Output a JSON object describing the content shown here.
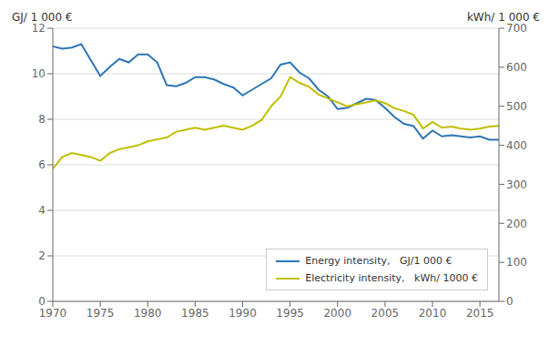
{
  "chart_data": {
    "type": "line",
    "ylabel": "GJ/ 1 000 €",
    "y2label": "kWh/ 1 000 €",
    "x": [
      1970,
      1971,
      1972,
      1973,
      1974,
      1975,
      1976,
      1977,
      1978,
      1979,
      1980,
      1981,
      1982,
      1983,
      1984,
      1985,
      1986,
      1987,
      1988,
      1989,
      1990,
      1991,
      1992,
      1993,
      1994,
      1995,
      1996,
      1997,
      1998,
      1999,
      2000,
      2001,
      2002,
      2003,
      2004,
      2005,
      2006,
      2007,
      2008,
      2009,
      2010,
      2011,
      2012,
      2013,
      2014,
      2015,
      2016,
      2017
    ],
    "series": [
      {
        "name": "Energy intensity,   GJ/1 000 €",
        "color": "#2E75B6",
        "values": [
          11.2,
          11.1,
          11.15,
          11.3,
          10.6,
          9.9,
          10.3,
          10.65,
          10.5,
          10.85,
          10.85,
          10.5,
          9.5,
          9.45,
          9.6,
          9.85,
          9.85,
          9.75,
          9.55,
          9.4,
          9.05,
          9.3,
          9.55,
          9.8,
          10.4,
          10.5,
          10.05,
          9.8,
          9.3,
          9.0,
          8.45,
          8.5,
          8.7,
          8.9,
          8.85,
          8.5,
          8.1,
          7.8,
          7.7,
          7.15,
          7.5,
          7.25,
          7.3,
          7.25,
          7.2,
          7.25,
          7.1,
          7.1
        ]
      },
      {
        "name": "Electricity intensity,   kWh/ 1000 €",
        "color": "#BFBF00",
        "axis": "y2",
        "values": [
          340,
          370,
          380,
          375,
          370,
          360,
          380,
          390,
          395,
          400,
          410,
          415,
          420,
          435,
          440,
          445,
          440,
          445,
          450,
          445,
          440,
          450,
          465,
          500,
          525,
          575,
          560,
          550,
          530,
          520,
          510,
          500,
          505,
          510,
          515,
          508,
          495,
          488,
          478,
          443,
          460,
          445,
          448,
          443,
          440,
          443,
          448,
          450
        ]
      }
    ],
    "xlim": [
      1970,
      2017
    ],
    "xticks": [
      1970,
      1975,
      1980,
      1985,
      1990,
      1995,
      2000,
      2005,
      2010,
      2015
    ],
    "ylim": [
      0,
      12
    ],
    "yticks": [
      0,
      2,
      4,
      6,
      8,
      10,
      12
    ],
    "y2lim": [
      0,
      700
    ],
    "y2ticks": [
      0,
      100,
      200,
      300,
      400,
      500,
      600,
      700
    ],
    "grid": true,
    "legend": "lower right"
  }
}
